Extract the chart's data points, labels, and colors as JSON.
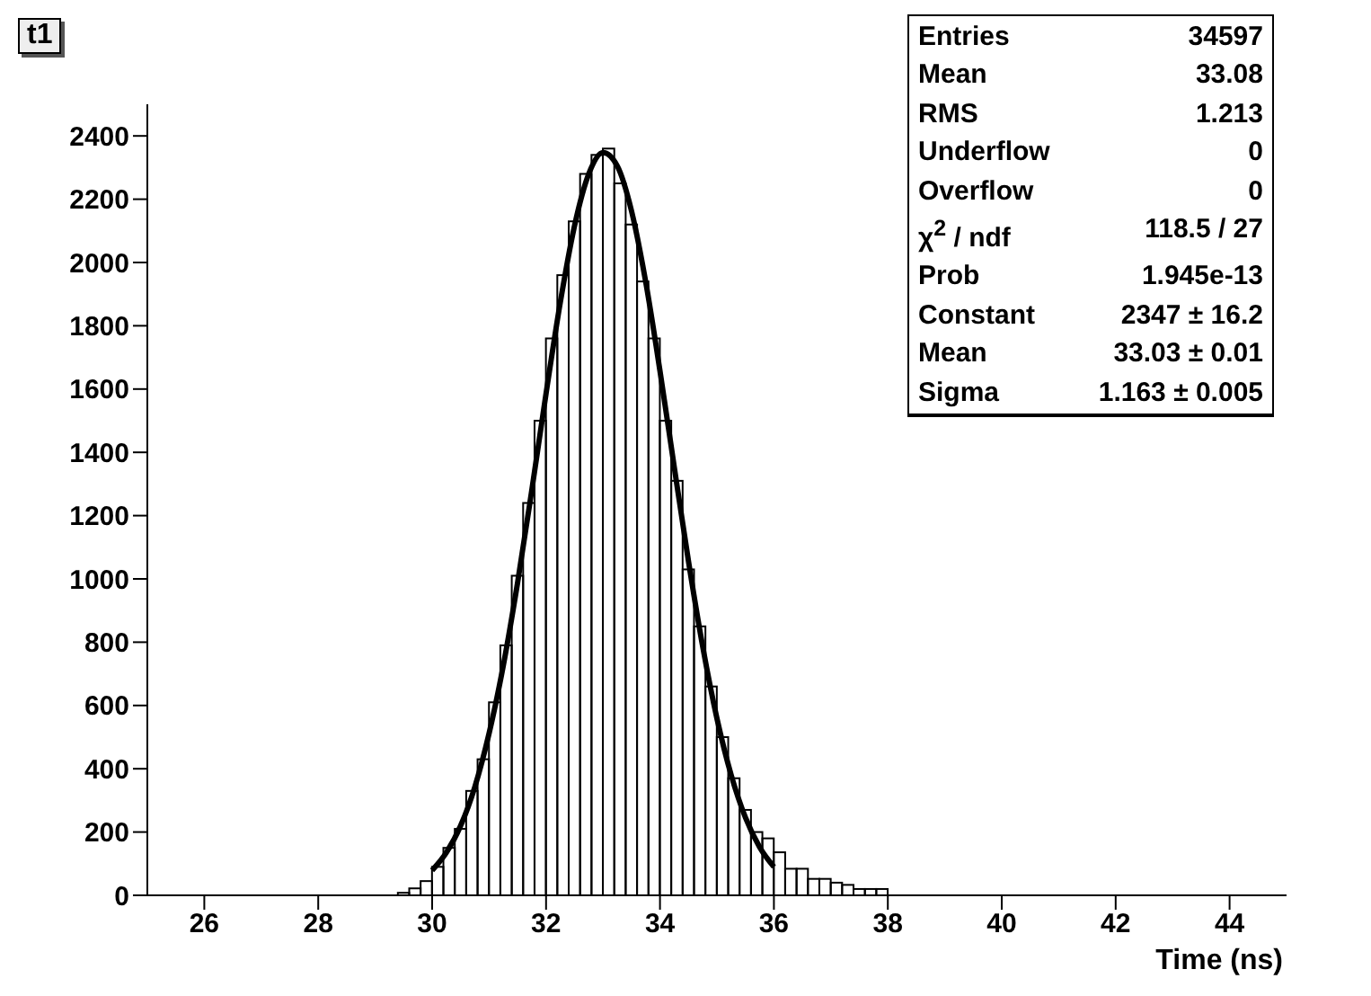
{
  "chart_data": {
    "type": "histogram",
    "title": "t1",
    "xlabel": "Time (ns)",
    "bins": [
      29.4,
      29.6,
      29.8,
      30.0,
      30.2,
      30.4,
      30.6,
      30.8,
      31.0,
      31.2,
      31.4,
      31.6,
      31.8,
      32.0,
      32.2,
      32.4,
      32.6,
      32.8,
      33.0,
      33.2,
      33.4,
      33.6,
      33.8,
      34.0,
      34.2,
      34.4,
      34.6,
      34.8,
      35.0,
      35.2,
      35.4,
      35.6,
      35.8,
      36.0,
      36.2,
      36.4,
      36.6,
      36.8,
      37.0,
      37.2,
      37.4,
      37.6,
      37.8,
      38.0
    ],
    "values": [
      8,
      22,
      45,
      90,
      150,
      210,
      330,
      430,
      610,
      790,
      1010,
      1240,
      1500,
      1760,
      1960,
      2130,
      2280,
      2340,
      2360,
      2250,
      2120,
      1940,
      1760,
      1500,
      1310,
      1030,
      850,
      660,
      500,
      370,
      270,
      200,
      180,
      136,
      84,
      84,
      52,
      52,
      40,
      33,
      20,
      20,
      20
    ],
    "color": "#000000",
    "series": [
      {
        "type": "line",
        "color": "#000000",
        "x": [
          30,
          30.25,
          30.5,
          30.75,
          31,
          31.25,
          31.5,
          31.75,
          32,
          32.25,
          32.5,
          32.75,
          33,
          33.25,
          33.5,
          33.75,
          34,
          34.25,
          34.5,
          34.75,
          35,
          35.25,
          35.5,
          35.75,
          36
        ],
        "values": [
          79,
          135,
          220,
          343,
          512,
          727,
          988,
          1281,
          1586,
          1874,
          2116,
          2280,
          2347,
          2305,
          2163,
          1938,
          1657,
          1354,
          1056,
          786,
          559,
          380,
          246,
          152,
          90
        ]
      }
    ],
    "xlim": [
      25,
      45
    ],
    "xticks": [
      26,
      28,
      30,
      32,
      34,
      36,
      38,
      40,
      42,
      44
    ],
    "ylim": [
      0,
      2500
    ],
    "yticks": [
      0,
      200,
      400,
      600,
      800,
      1000,
      1200,
      1400,
      1600,
      1800,
      2000,
      2200,
      2400
    ],
    "grid": false,
    "legend": false,
    "marker": "none",
    "annotations": [
      "Entries",
      "34597",
      "Mean",
      "33.08",
      "RMS",
      "1.213",
      "Underflow",
      "0",
      "Overflow",
      "0",
      "χ$^{2}$ / ndf",
      "118.5 / 27",
      "Prob",
      "1.945e-13",
      "Constant",
      "2347 ± 16.2",
      "Mean",
      "33.03 ± 0.01",
      "Sigma",
      "1.163 ± 0.005"
    ]
  }
}
